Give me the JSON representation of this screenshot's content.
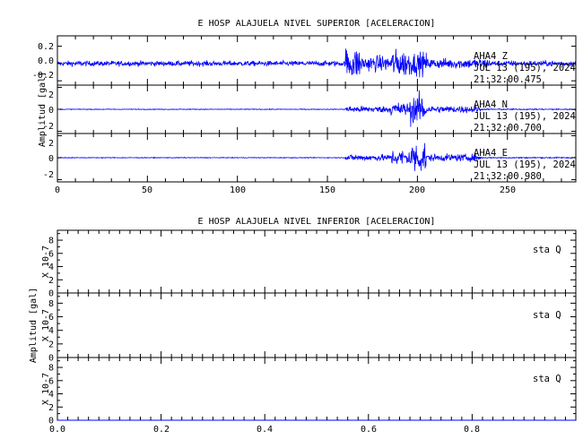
{
  "chart_data": [
    {
      "type": "line",
      "title": "E HOSP ALAJUELA NIVEL SUPERIOR [ACELERACION]",
      "ylabel": "Amplitud [gal]",
      "xlim": [
        0,
        288
      ],
      "x_ticks": [
        "0",
        "50",
        "100",
        "150",
        "200",
        "250"
      ],
      "color": "#0000ff",
      "channels": [
        {
          "name": "AHA4   Z",
          "date": "JUL 13 (195), 2024",
          "time": "21:32:00.475",
          "ylim": [
            -0.25,
            0.32
          ],
          "y_ticks": [
            "0.2",
            "0.0",
            "-0.2"
          ],
          "segments": [
            {
              "x": [
                0,
                160
              ],
              "amp": 0.045
            },
            {
              "x": [
                160,
                168
              ],
              "amp": 0.28
            },
            {
              "x": [
                168,
                185
              ],
              "amp": 0.14
            },
            {
              "x": [
                185,
                196
              ],
              "amp": 0.24
            },
            {
              "x": [
                196,
                205
              ],
              "amp": 0.2
            },
            {
              "x": [
                205,
                240
              ],
              "amp": 0.09
            },
            {
              "x": [
                240,
                288
              ],
              "amp": 0.05
            }
          ]
        },
        {
          "name": "AHA4   N",
          "date": "JUL 13 (195), 2024",
          "time": "21:32:00.700",
          "ylim": [
            -2.2,
            2.2
          ],
          "y_ticks": [
            "2",
            "0",
            "-2"
          ],
          "segments": [
            {
              "x": [
                0,
                160
              ],
              "amp": 0.05
            },
            {
              "x": [
                160,
                185
              ],
              "amp": 0.45
            },
            {
              "x": [
                185,
                196
              ],
              "amp": 1.0
            },
            {
              "x": [
                196,
                205
              ],
              "amp": 2.0
            },
            {
              "x": [
                205,
                235
              ],
              "amp": 0.5
            },
            {
              "x": [
                235,
                288
              ],
              "amp": 0.08
            }
          ]
        },
        {
          "name": "AHA4   E",
          "date": "JUL 13 (195), 2024",
          "time": "21:32:00.980",
          "ylim": [
            -2.2,
            2.2
          ],
          "y_ticks": [
            "2",
            "0",
            "-2"
          ],
          "segments": [
            {
              "x": [
                0,
                160
              ],
              "amp": 0.05
            },
            {
              "x": [
                160,
                185
              ],
              "amp": 0.45
            },
            {
              "x": [
                185,
                196
              ],
              "amp": 1.1
            },
            {
              "x": [
                196,
                205
              ],
              "amp": 2.2
            },
            {
              "x": [
                205,
                235
              ],
              "amp": 0.5
            },
            {
              "x": [
                235,
                288
              ],
              "amp": 0.08
            }
          ]
        }
      ]
    },
    {
      "type": "line",
      "title": "E HOSP ALAJUELA NIVEL INFERIOR [ACELERACION]",
      "ylabel": "Amplitud [gal]",
      "scale_label": "X 10-7",
      "xlim": [
        0,
        1
      ],
      "x_ticks": [
        "0.0",
        "0.2",
        "0.4",
        "0.6",
        "0.8"
      ],
      "color": "#0000ff",
      "channels": [
        {
          "name": "sta   Q",
          "ylim": [
            0,
            9.5
          ],
          "y_ticks": [
            "8",
            "6",
            "4",
            "2",
            "0"
          ],
          "values": [
            0,
            0
          ]
        },
        {
          "name": "sta   Q",
          "ylim": [
            0,
            9.5
          ],
          "y_ticks": [
            "8",
            "6",
            "4",
            "2",
            "0"
          ],
          "values": [
            0,
            0
          ]
        },
        {
          "name": "sta   Q",
          "ylim": [
            0,
            9.5
          ],
          "y_ticks": [
            "8",
            "6",
            "4",
            "2",
            "0"
          ],
          "values": [
            0,
            0
          ]
        }
      ]
    }
  ]
}
